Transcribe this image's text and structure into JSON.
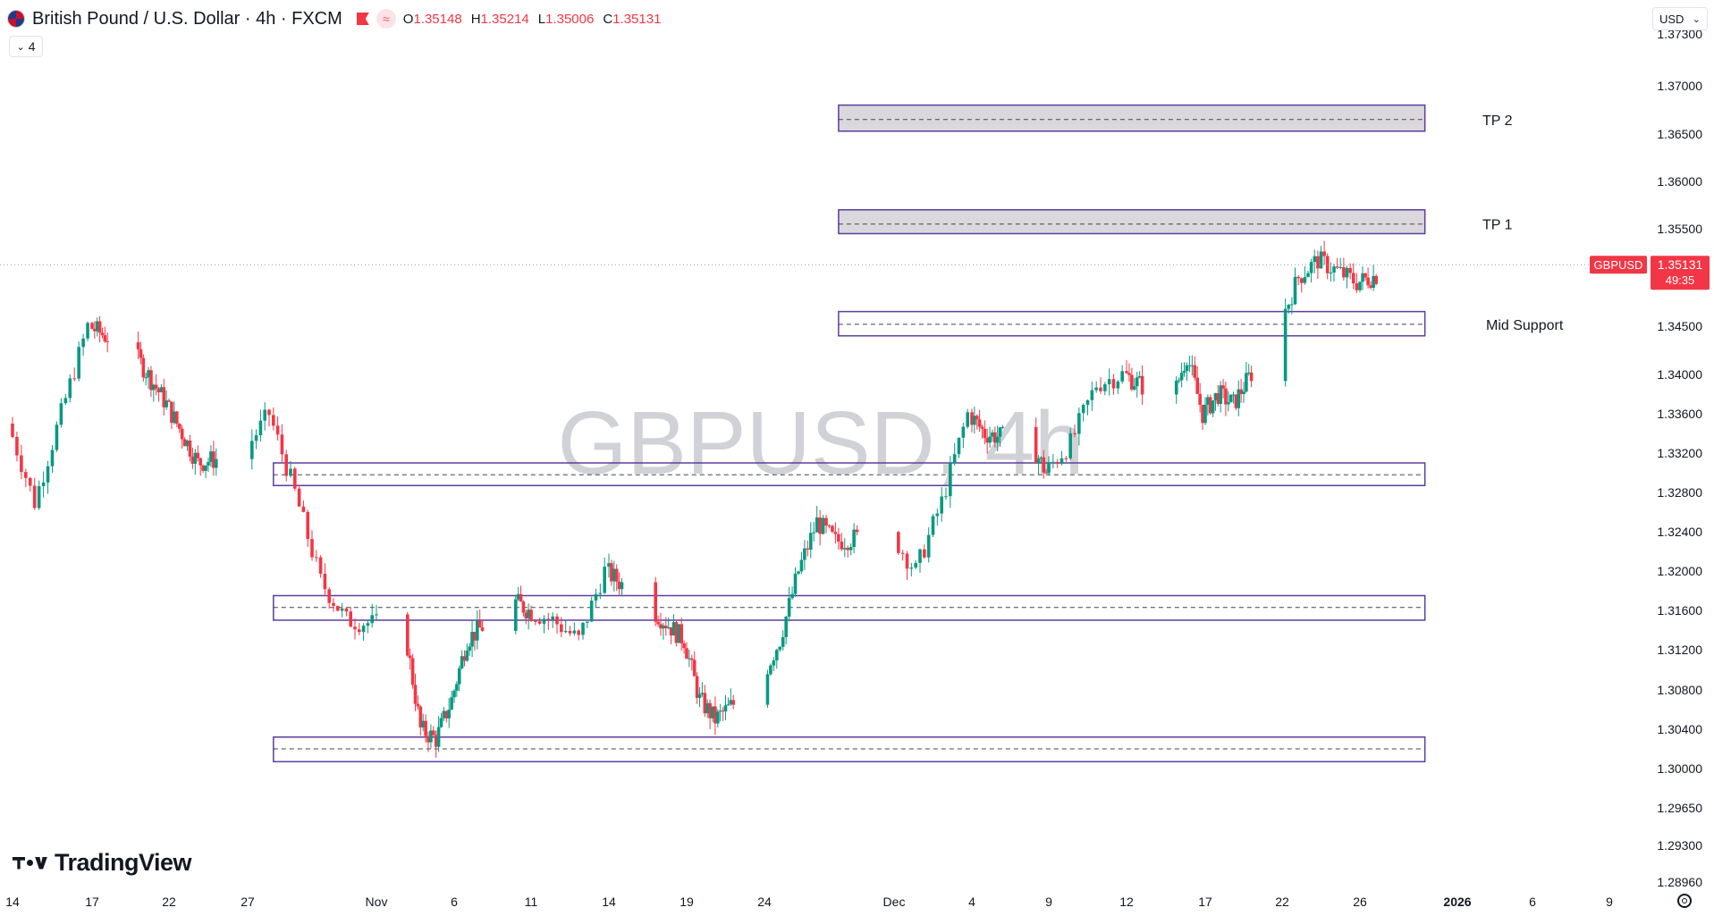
{
  "header": {
    "symbol_title": "British Pound / U.S. Dollar · 4h · FXCM",
    "ohlc": [
      {
        "key": "O",
        "value": "1.35148"
      },
      {
        "key": "H",
        "value": "1.35214"
      },
      {
        "key": "L",
        "value": "1.35006"
      },
      {
        "key": "C",
        "value": "1.35131"
      }
    ],
    "icons": [
      "flag-icon",
      "wave-icon"
    ]
  },
  "toolbar": {
    "indicator_count": "4",
    "currency": "USD"
  },
  "watermark": "GBPUSD, 4h",
  "brand": "TradingView",
  "price_label": {
    "symbol": "GBPUSD",
    "price": "1.35131",
    "countdown": "49:35"
  },
  "colors": {
    "up": "#089981",
    "down": "#f23645",
    "zone_border": "#5b3d9e",
    "zone_fill_tp": "#d6d4d9",
    "price_tag": "#f23645"
  },
  "chart_data": {
    "type": "candlestick",
    "title": "British Pound / U.S. Dollar · 4h · FXCM",
    "timeframe": "4h",
    "y_ticks": [
      "1.37300",
      "1.37000",
      "1.36500",
      "1.36000",
      "1.35500",
      "1.34500",
      "1.34000",
      "1.33600",
      "1.33200",
      "1.32800",
      "1.32400",
      "1.32000",
      "1.31600",
      "1.31200",
      "1.30800",
      "1.30400",
      "1.30000",
      "1.29650",
      "1.29300",
      "1.28960"
    ],
    "x_ticks": [
      "14",
      "17",
      "22",
      "27",
      "Nov",
      "6",
      "11",
      "14",
      "19",
      "24",
      "Dec",
      "4",
      "9",
      "12",
      "17",
      "22",
      "26",
      "2026",
      "6",
      "9"
    ],
    "x_ticks_bold": [
      "2026"
    ],
    "last_price": 1.35131,
    "price_path": [
      {
        "x": "Oct 14",
        "price": 1.335
      },
      {
        "x": "Oct 15",
        "price": 1.327
      },
      {
        "x": "Oct 17",
        "price": 1.345
      },
      {
        "x": "Oct 20",
        "price": 1.342
      },
      {
        "x": "Oct 22",
        "price": 1.337
      },
      {
        "x": "Oct 24",
        "price": 1.331
      },
      {
        "x": "Oct 27",
        "price": 1.332
      },
      {
        "x": "Oct 28",
        "price": 1.336
      },
      {
        "x": "Oct 29",
        "price": 1.328
      },
      {
        "x": "Oct 30",
        "price": 1.319
      },
      {
        "x": "Oct 31",
        "price": 1.315
      },
      {
        "x": "Nov 3",
        "price": 1.314
      },
      {
        "x": "Nov 4",
        "price": 1.304
      },
      {
        "x": "Nov 5",
        "price": 1.303
      },
      {
        "x": "Nov 6",
        "price": 1.307
      },
      {
        "x": "Nov 7",
        "price": 1.313
      },
      {
        "x": "Nov 10",
        "price": 1.317
      },
      {
        "x": "Nov 12",
        "price": 1.315
      },
      {
        "x": "Nov 13",
        "price": 1.313
      },
      {
        "x": "Nov 14",
        "price": 1.32
      },
      {
        "x": "Nov 17",
        "price": 1.316
      },
      {
        "x": "Nov 19",
        "price": 1.313
      },
      {
        "x": "Nov 20",
        "price": 1.307
      },
      {
        "x": "Nov 21",
        "price": 1.305
      },
      {
        "x": "Nov 24",
        "price": 1.309
      },
      {
        "x": "Nov 25",
        "price": 1.313
      },
      {
        "x": "Nov 26",
        "price": 1.32
      },
      {
        "x": "Nov 27",
        "price": 1.325
      },
      {
        "x": "Nov 28",
        "price": 1.323
      },
      {
        "x": "Dec 1",
        "price": 1.324
      },
      {
        "x": "Dec 2",
        "price": 1.32
      },
      {
        "x": "Dec 3",
        "price": 1.327
      },
      {
        "x": "Dec 4",
        "price": 1.336
      },
      {
        "x": "Dec 5",
        "price": 1.334
      },
      {
        "x": "Dec 8",
        "price": 1.333
      },
      {
        "x": "Dec 9",
        "price": 1.33
      },
      {
        "x": "Dec 10",
        "price": 1.333
      },
      {
        "x": "Dec 11",
        "price": 1.339
      },
      {
        "x": "Dec 12",
        "price": 1.34
      },
      {
        "x": "Dec 15",
        "price": 1.337
      },
      {
        "x": "Dec 16",
        "price": 1.342
      },
      {
        "x": "Dec 17",
        "price": 1.336
      },
      {
        "x": "Dec 18",
        "price": 1.338
      },
      {
        "x": "Dec 19",
        "price": 1.337
      },
      {
        "x": "Dec 22",
        "price": 1.345
      },
      {
        "x": "Dec 23",
        "price": 1.35
      },
      {
        "x": "Dec 24",
        "price": 1.3518
      },
      {
        "x": "Dec 26",
        "price": 1.3495
      },
      {
        "x": "Dec 29",
        "price": 1.3513
      }
    ],
    "zones": [
      {
        "label": "TP 2",
        "high": 1.368,
        "low": 1.3653,
        "mid": 1.3665,
        "x_start": "Nov 28",
        "x_end": "Dec 30",
        "filled": true
      },
      {
        "label": "TP 1",
        "high": 1.357,
        "low": 1.3545,
        "mid": 1.3555,
        "x_start": "Nov 28",
        "x_end": "Dec 30",
        "filled": true
      },
      {
        "label": "Mid Support",
        "high": 1.3465,
        "low": 1.344,
        "mid": 1.3452,
        "x_start": "Nov 28",
        "x_end": "Dec 30",
        "filled": false
      },
      {
        "label": "",
        "high": 1.331,
        "low": 1.3287,
        "mid": 1.3298,
        "x_start": "Oct 28",
        "x_end": "Dec 30",
        "filled": false
      },
      {
        "label": "",
        "high": 1.3175,
        "low": 1.315,
        "mid": 1.3163,
        "x_start": "Oct 28",
        "x_end": "Dec 30",
        "filled": false
      },
      {
        "label": "",
        "high": 1.3032,
        "low": 1.3007,
        "mid": 1.302,
        "x_start": "Oct 28",
        "x_end": "Dec 30",
        "filled": false
      }
    ]
  }
}
